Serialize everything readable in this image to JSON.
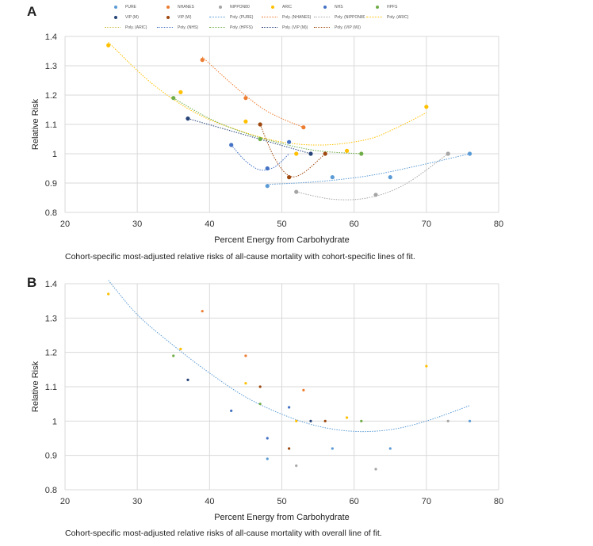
{
  "panels": {
    "a_label": "A",
    "b_label": "B",
    "a_caption": "Cohort-specific most-adjusted relative risks of all-cause mortality with cohort-specific lines of fit.",
    "b_caption": "Cohort-specific most-adjusted relative risks of all-cause mortality with overall line of fit."
  },
  "legend": {
    "rows": [
      [
        {
          "label": "PURE",
          "kind": "dot",
          "color": "#5b9bd5"
        },
        {
          "label": "NHANES",
          "kind": "dot",
          "color": "#ed7d31"
        },
        {
          "label": "NIPPON80",
          "kind": "dot",
          "color": "#a5a5a5"
        },
        {
          "label": "ARIC",
          "kind": "dot",
          "color": "#ffc000"
        },
        {
          "label": "NHS",
          "kind": "dot",
          "color": "#4472c4"
        },
        {
          "label": "HPFS",
          "kind": "dot",
          "color": "#70ad47"
        }
      ],
      [
        {
          "label": "VIP (M)",
          "kind": "dot",
          "color": "#264478"
        },
        {
          "label": "VIP (W)",
          "kind": "dot",
          "color": "#9e480e"
        },
        {
          "label": "Poly. (PURE)",
          "kind": "line",
          "color": "#5b9bd5"
        },
        {
          "label": "Poly. (NHANES)",
          "kind": "line",
          "color": "#ed7d31"
        },
        {
          "label": "Poly. (NIPPON80)",
          "kind": "line",
          "color": "#a5a5a5"
        },
        {
          "label": "Poly. (ARIC)",
          "kind": "line",
          "color": "#ffc000"
        }
      ],
      [
        {
          "label": "Poly. (ARIC)",
          "kind": "line",
          "color": "#c9c04a"
        },
        {
          "label": "Poly. (NHS)",
          "kind": "line",
          "color": "#4472c4"
        },
        {
          "label": "Poly. (HPFS)",
          "kind": "line",
          "color": "#70ad47"
        },
        {
          "label": "Poly. (VIP (M))",
          "kind": "line",
          "color": "#264478"
        },
        {
          "label": "Poly. (VIP (W))",
          "kind": "line",
          "color": "#9e480e"
        }
      ]
    ]
  },
  "chart_data": [
    {
      "type": "scatter",
      "title": "",
      "xlabel": "Percent Energy from Carbohydrate",
      "ylabel": "Relative Risk",
      "xlim": [
        20,
        80
      ],
      "ylim": [
        0.8,
        1.4
      ],
      "xticks": [
        "20",
        "30",
        "40",
        "50",
        "60",
        "70",
        "80"
      ],
      "yticks": [
        "0.8",
        "0.9",
        "1",
        "1.1",
        "1.2",
        "1.3",
        "1.4"
      ],
      "grid": true,
      "series": [
        {
          "name": "PURE",
          "color": "#5b9bd5",
          "x": [
            48,
            57,
            65,
            76
          ],
          "y": [
            0.89,
            0.92,
            0.92,
            1.0
          ],
          "fit": [
            [
              48,
              0.895
            ],
            [
              55,
              0.905
            ],
            [
              62,
              0.925
            ],
            [
              69,
              0.96
            ],
            [
              76,
              1.0
            ]
          ]
        },
        {
          "name": "NHANES",
          "color": "#ed7d31",
          "x": [
            39,
            45,
            53
          ],
          "y": [
            1.32,
            1.19,
            1.09
          ],
          "fit": [
            [
              39,
              1.33
            ],
            [
              43,
              1.24
            ],
            [
              47,
              1.16
            ],
            [
              50,
              1.12
            ],
            [
              53,
              1.09
            ]
          ]
        },
        {
          "name": "NIPPON80",
          "color": "#a5a5a5",
          "x": [
            52,
            63,
            73
          ],
          "y": [
            0.87,
            0.86,
            1.0
          ],
          "fit": [
            [
              52,
              0.87
            ],
            [
              57,
              0.845
            ],
            [
              62,
              0.85
            ],
            [
              67,
              0.895
            ],
            [
              73,
              1.0
            ]
          ]
        },
        {
          "name": "ARIC",
          "color": "#ffc000",
          "x": [
            26,
            36,
            45,
            52,
            59,
            70
          ],
          "y": [
            1.37,
            1.21,
            1.11,
            1.0,
            1.01,
            1.16
          ],
          "fit": [
            [
              26,
              1.38
            ],
            [
              32,
              1.24
            ],
            [
              38,
              1.14
            ],
            [
              44,
              1.08
            ],
            [
              50,
              1.04
            ],
            [
              56,
              1.03
            ],
            [
              62,
              1.05
            ],
            [
              66,
              1.09
            ],
            [
              70,
              1.14
            ]
          ]
        },
        {
          "name": "NHS",
          "color": "#4472c4",
          "x": [
            43,
            48,
            51
          ],
          "y": [
            1.03,
            0.95,
            1.04
          ],
          "fit": [
            [
              43,
              1.03
            ],
            [
              45,
              0.975
            ],
            [
              47,
              0.945
            ],
            [
              49,
              0.955
            ],
            [
              51,
              1.0
            ]
          ]
        },
        {
          "name": "HPFS",
          "color": "#70ad47",
          "x": [
            35,
            47,
            61
          ],
          "y": [
            1.19,
            1.05,
            1.0
          ],
          "fit": [
            [
              35,
              1.19
            ],
            [
              40,
              1.12
            ],
            [
              45,
              1.07
            ],
            [
              50,
              1.035
            ],
            [
              55,
              1.01
            ],
            [
              61,
              1.0
            ]
          ]
        },
        {
          "name": "VIP (M)",
          "color": "#264478",
          "x": [
            37,
            54
          ],
          "y": [
            1.12,
            1.0
          ],
          "fit": [
            [
              37,
              1.12
            ],
            [
              54,
              1.0
            ]
          ]
        },
        {
          "name": "VIP (W)",
          "color": "#9e480e",
          "x": [
            47,
            51,
            56
          ],
          "y": [
            1.1,
            0.92,
            1.0
          ],
          "fit": [
            [
              47,
              1.1
            ],
            [
              49,
              0.985
            ],
            [
              51,
              0.925
            ],
            [
              53,
              0.935
            ],
            [
              56,
              1.0
            ]
          ]
        }
      ]
    },
    {
      "type": "scatter",
      "title": "",
      "xlabel": "Percent Energy from Carbohydrate",
      "ylabel": "Relative Risk",
      "xlim": [
        20,
        80
      ],
      "ylim": [
        0.8,
        1.4
      ],
      "xticks": [
        "20",
        "30",
        "40",
        "50",
        "60",
        "70",
        "80"
      ],
      "yticks": [
        "0.8",
        "0.9",
        "1",
        "1.1",
        "1.2",
        "1.3",
        "1.4"
      ],
      "grid": true,
      "series": [
        {
          "name": "PURE",
          "color": "#5b9bd5",
          "x": [
            48,
            57,
            65,
            76
          ],
          "y": [
            0.89,
            0.92,
            0.92,
            1.0
          ]
        },
        {
          "name": "NHANES",
          "color": "#ed7d31",
          "x": [
            39,
            45,
            53
          ],
          "y": [
            1.32,
            1.19,
            1.09
          ]
        },
        {
          "name": "NIPPON80",
          "color": "#a5a5a5",
          "x": [
            52,
            63,
            73
          ],
          "y": [
            0.87,
            0.86,
            1.0
          ]
        },
        {
          "name": "ARIC",
          "color": "#ffc000",
          "x": [
            26,
            36,
            45,
            52,
            59,
            70
          ],
          "y": [
            1.37,
            1.21,
            1.11,
            1.0,
            1.01,
            1.16
          ]
        },
        {
          "name": "NHS",
          "color": "#4472c4",
          "x": [
            43,
            48,
            51
          ],
          "y": [
            1.03,
            0.95,
            1.04
          ]
        },
        {
          "name": "HPFS",
          "color": "#70ad47",
          "x": [
            35,
            47,
            61
          ],
          "y": [
            1.19,
            1.05,
            1.0
          ]
        },
        {
          "name": "VIP (M)",
          "color": "#264478",
          "x": [
            37,
            54
          ],
          "y": [
            1.12,
            1.0
          ]
        },
        {
          "name": "VIP (W)",
          "color": "#9e480e",
          "x": [
            47,
            51,
            56
          ],
          "y": [
            1.1,
            0.92,
            1.0
          ]
        }
      ],
      "overall_fit": {
        "color": "#5b9bd5",
        "points": [
          [
            26,
            1.41
          ],
          [
            30,
            1.31
          ],
          [
            35,
            1.22
          ],
          [
            40,
            1.14
          ],
          [
            45,
            1.07
          ],
          [
            50,
            1.02
          ],
          [
            55,
            0.985
          ],
          [
            60,
            0.97
          ],
          [
            65,
            0.975
          ],
          [
            70,
            1.0
          ],
          [
            76,
            1.045
          ]
        ]
      }
    }
  ]
}
